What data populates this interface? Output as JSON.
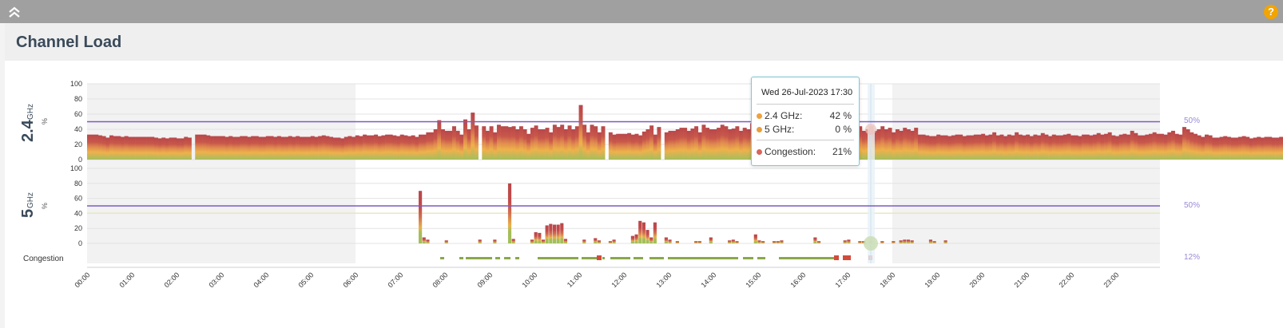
{
  "page": {
    "title": "Channel Load"
  },
  "topbar": {
    "collapse_icon": "double-chevron-up-icon",
    "help_label": "?",
    "help_color": "#f2a400"
  },
  "colors": {
    "threshold": "#7b5cc4",
    "bar_low": "#a4be5a",
    "bar_mid": "#eeb24a",
    "bar_high": "#c8574a",
    "congestion_ok": "#8aa84a",
    "congestion_bad": "#d24b3b"
  },
  "chart_data": {
    "type": "bar",
    "x_labels": [
      "00:00",
      "01:00",
      "02:00",
      "03:00",
      "04:00",
      "05:00",
      "06:00",
      "07:00",
      "08:00",
      "09:00",
      "10:00",
      "11:00",
      "12:00",
      "13:00",
      "14:00",
      "15:00",
      "16:00",
      "17:00",
      "18:00",
      "19:00",
      "20:00",
      "21:00",
      "22:00",
      "23:00"
    ],
    "highlight_range_hours": [
      6,
      18
    ],
    "panels": [
      {
        "band": "2.4",
        "unit": "GHz",
        "ylabel": "%",
        "yticks": [
          0,
          20,
          40,
          60,
          80,
          100
        ],
        "ylim": [
          0,
          100
        ],
        "threshold": 50,
        "threshold_label": "50%",
        "values": [
          33,
          33,
          33,
          32,
          31,
          29,
          32,
          31,
          31,
          30,
          31,
          30,
          30,
          30,
          30,
          30,
          30,
          30,
          29,
          28,
          29,
          28,
          29,
          29,
          28,
          28,
          30,
          29,
          null,
          33,
          33,
          33,
          32,
          31,
          31,
          31,
          31,
          30,
          31,
          30,
          30,
          31,
          31,
          30,
          31,
          31,
          30,
          30,
          31,
          31,
          30,
          31,
          30,
          30,
          31,
          30,
          31,
          30,
          30,
          30,
          31,
          30,
          31,
          32,
          31,
          30,
          29,
          29,
          28,
          30,
          31,
          30,
          32,
          31,
          33,
          32,
          32,
          33,
          31,
          32,
          33,
          33,
          32,
          31,
          33,
          32,
          31,
          32,
          30,
          33,
          33,
          36,
          36,
          40,
          52,
          40,
          38,
          38,
          44,
          38,
          33,
          53,
          40,
          62,
          45,
          null,
          44,
          38,
          44,
          36,
          46,
          44,
          44,
          43,
          44,
          40,
          44,
          40,
          34,
          42,
          45,
          40,
          40,
          42,
          36,
          46,
          43,
          46,
          40,
          45,
          40,
          44,
          72,
          46,
          36,
          46,
          44,
          36,
          44,
          null,
          36,
          33,
          34,
          34,
          34,
          35,
          33,
          34,
          32,
          37,
          40,
          45,
          33,
          43,
          null,
          36,
          38,
          38,
          40,
          42,
          42,
          38,
          41,
          44,
          36,
          46,
          42,
          40,
          40,
          42,
          46,
          44,
          40,
          41,
          44,
          38,
          42,
          40,
          48,
          38,
          40,
          40,
          38,
          42,
          40,
          42,
          44,
          36,
          44,
          40,
          42,
          38,
          43,
          36,
          38,
          42,
          44,
          38,
          42,
          40,
          38,
          42,
          40,
          42,
          44,
          46,
          42,
          44,
          38,
          40,
          44,
          38,
          40,
          44,
          40,
          42,
          36,
          40,
          38,
          42,
          40,
          38,
          42,
          33,
          33,
          32,
          31,
          31,
          33,
          32,
          32,
          31,
          32,
          33,
          33,
          31,
          32,
          32,
          33,
          33,
          34,
          32,
          33,
          36,
          32,
          33,
          31,
          33,
          32,
          36,
          33,
          32,
          33,
          31,
          33,
          32,
          35,
          33,
          31,
          33,
          32,
          32,
          33,
          34,
          32,
          32,
          31,
          33,
          33,
          32,
          33,
          35,
          33,
          34,
          36,
          32,
          31,
          33,
          34,
          33,
          38,
          35,
          32,
          32,
          33,
          34,
          36,
          34,
          34,
          33,
          36,
          38,
          34,
          33,
          43,
          40,
          36,
          34,
          32,
          30,
          33,
          32,
          29,
          29,
          30,
          31,
          30,
          29,
          29,
          30,
          31,
          30,
          28,
          29,
          30,
          29,
          30,
          30,
          29,
          29,
          30,
          30,
          29,
          30,
          30,
          29,
          30,
          30
        ]
      },
      {
        "band": "5",
        "unit": "GHz",
        "ylabel": "%",
        "yticks": [
          0,
          20,
          40,
          60,
          80,
          100
        ],
        "ylim": [
          0,
          100
        ],
        "threshold": 50,
        "threshold_label": "50%",
        "values": [
          [
            89,
            70
          ],
          [
            90,
            8
          ],
          [
            91,
            5
          ],
          [
            96,
            4
          ],
          [
            105,
            5
          ],
          [
            109,
            5
          ],
          [
            113,
            80
          ],
          [
            114,
            6
          ],
          [
            119,
            5
          ],
          [
            120,
            15
          ],
          [
            121,
            14
          ],
          [
            122,
            5
          ],
          [
            123,
            24
          ],
          [
            124,
            26
          ],
          [
            125,
            25
          ],
          [
            126,
            25
          ],
          [
            127,
            27
          ],
          [
            128,
            6
          ],
          [
            133,
            5
          ],
          [
            136,
            7
          ],
          [
            137,
            4
          ],
          [
            140,
            3
          ],
          [
            141,
            5
          ],
          [
            146,
            10
          ],
          [
            147,
            12
          ],
          [
            148,
            30
          ],
          [
            149,
            28
          ],
          [
            150,
            18
          ],
          [
            151,
            8
          ],
          [
            152,
            28
          ],
          [
            155,
            8
          ],
          [
            156,
            5
          ],
          [
            158,
            3
          ],
          [
            163,
            3
          ],
          [
            164,
            3
          ],
          [
            167,
            8
          ],
          [
            172,
            4
          ],
          [
            173,
            5
          ],
          [
            174,
            3
          ],
          [
            179,
            12
          ],
          [
            180,
            4
          ],
          [
            181,
            3
          ],
          [
            184,
            3
          ],
          [
            185,
            3
          ],
          [
            186,
            4
          ],
          [
            195,
            8
          ],
          [
            196,
            3
          ],
          [
            203,
            4
          ],
          [
            204,
            5
          ],
          [
            207,
            3
          ],
          [
            208,
            3
          ],
          [
            210,
            3
          ],
          [
            213,
            3
          ],
          [
            216,
            3
          ],
          [
            218,
            4
          ],
          [
            219,
            5
          ],
          [
            220,
            5
          ],
          [
            221,
            4
          ],
          [
            226,
            5
          ],
          [
            227,
            3
          ],
          [
            230,
            4
          ]
        ]
      }
    ],
    "congestion": {
      "label": "Congestion",
      "value_label": "12%"
    },
    "tooltip": {
      "title": "Wed 26-Jul-2023 17:30",
      "rows": [
        {
          "label": "2.4 GHz:",
          "value": "42 %"
        },
        {
          "label": "5 GHz:",
          "value": "0 %"
        },
        {
          "label": "Congestion:",
          "value": "21%"
        }
      ]
    }
  }
}
